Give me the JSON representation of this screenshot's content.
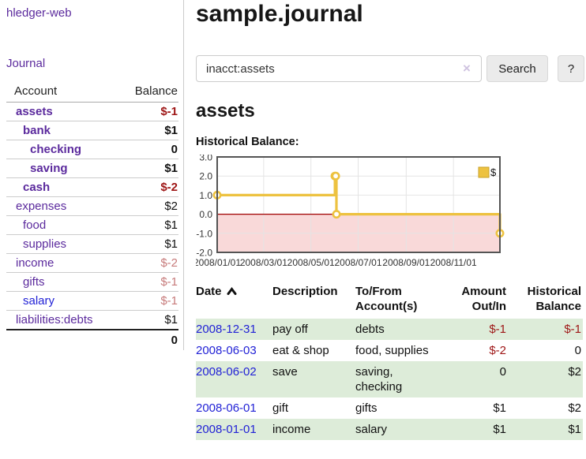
{
  "app": {
    "brand": "hledger-web",
    "title": "sample.journal"
  },
  "colors": {
    "accent_purple": "#5b2a9d",
    "link_blue": "#2222d6",
    "negative_strong": "#9e1616",
    "negative_light": "#c77b7b",
    "row_stripe_green": "#ddecd9",
    "series_yellow": "#edc240",
    "zero_line_red": "#a00000",
    "negative_region_pink": "#f9d9d9"
  },
  "sidebar": {
    "journal_link": "Journal",
    "table": {
      "account_header": "Account",
      "balance_header": "Balance",
      "accounts": [
        {
          "name": "assets",
          "level": 0,
          "bold": true,
          "link": "purple",
          "balance": "$-1",
          "balance_style": "neg-strong"
        },
        {
          "name": "bank",
          "level": 1,
          "bold": true,
          "link": "purple",
          "balance": "$1",
          "balance_style": "pos"
        },
        {
          "name": "checking",
          "level": 2,
          "bold": true,
          "link": "purple",
          "balance": "0",
          "balance_style": "pos"
        },
        {
          "name": "saving",
          "level": 2,
          "bold": true,
          "link": "purple",
          "balance": "$1",
          "balance_style": "pos"
        },
        {
          "name": "cash",
          "level": 1,
          "bold": true,
          "link": "purple",
          "balance": "$-2",
          "balance_style": "neg-strong"
        },
        {
          "name": "expenses",
          "level": 0,
          "bold": false,
          "link": "purple",
          "balance": "$2",
          "balance_style": "pos"
        },
        {
          "name": "food",
          "level": 1,
          "bold": false,
          "link": "purple",
          "balance": "$1",
          "balance_style": "pos"
        },
        {
          "name": "supplies",
          "level": 1,
          "bold": false,
          "link": "purple",
          "balance": "$1",
          "balance_style": "pos"
        },
        {
          "name": "income",
          "level": 0,
          "bold": false,
          "link": "purple",
          "balance": "$-2",
          "balance_style": "neg-light"
        },
        {
          "name": "gifts",
          "level": 1,
          "bold": false,
          "link": "purple",
          "balance": "$-1",
          "balance_style": "neg-light"
        },
        {
          "name": "salary",
          "level": 1,
          "bold": false,
          "link": "blue",
          "balance": "$-1",
          "balance_style": "neg-light"
        },
        {
          "name": "liabilities:debts",
          "level": 0,
          "bold": false,
          "link": "purple",
          "balance": "$1",
          "balance_style": "pos"
        }
      ],
      "total": "0"
    }
  },
  "search": {
    "query": "inacct:assets",
    "clear_glyph": "×",
    "search_label": "Search",
    "help_label": "?"
  },
  "account_page": {
    "heading": "assets",
    "chart_label": "Historical Balance:"
  },
  "chart_data": {
    "type": "line",
    "title": "Historical Balance:",
    "xlim": [
      "2008-01-01",
      "2008-12-31"
    ],
    "ylim": [
      -2,
      3
    ],
    "y_ticks": [
      3.0,
      2.0,
      1.0,
      0.0,
      -1.0,
      -2.0
    ],
    "x_ticks": [
      "2008/01/01",
      "2008/03/01",
      "2008/05/01",
      "2008/07/01",
      "2008/09/01",
      "2008/11/01"
    ],
    "grid": true,
    "legend": {
      "label": "$",
      "position": "top-right"
    },
    "series": [
      {
        "name": "$",
        "step": true,
        "points": [
          {
            "x": "2008-01-01",
            "y": 1
          },
          {
            "x": "2008-06-01",
            "y": 2
          },
          {
            "x": "2008-06-02",
            "y": 2
          },
          {
            "x": "2008-06-03",
            "y": 0
          },
          {
            "x": "2008-12-31",
            "y": -1
          }
        ]
      }
    ]
  },
  "register": {
    "headers": {
      "date": "Date",
      "description": "Description",
      "accounts": "To/From Account(s)",
      "amount": "Amount Out/In",
      "balance": "Historical Balance"
    },
    "rows": [
      {
        "date": "2008-12-31",
        "description": "pay off",
        "accounts": "debts",
        "amount": "$-1",
        "amount_neg": true,
        "balance": "$-1",
        "balance_neg": true
      },
      {
        "date": "2008-06-03",
        "description": "eat & shop",
        "accounts": "food, supplies",
        "amount": "$-2",
        "amount_neg": true,
        "balance": "0",
        "balance_neg": false
      },
      {
        "date": "2008-06-02",
        "description": "save",
        "accounts": "saving, checking",
        "amount": "0",
        "amount_neg": false,
        "balance": "$2",
        "balance_neg": false
      },
      {
        "date": "2008-06-01",
        "description": "gift",
        "accounts": "gifts",
        "amount": "$1",
        "amount_neg": false,
        "balance": "$2",
        "balance_neg": false
      },
      {
        "date": "2008-01-01",
        "description": "income",
        "accounts": "salary",
        "amount": "$1",
        "amount_neg": false,
        "balance": "$1",
        "balance_neg": false
      }
    ]
  }
}
